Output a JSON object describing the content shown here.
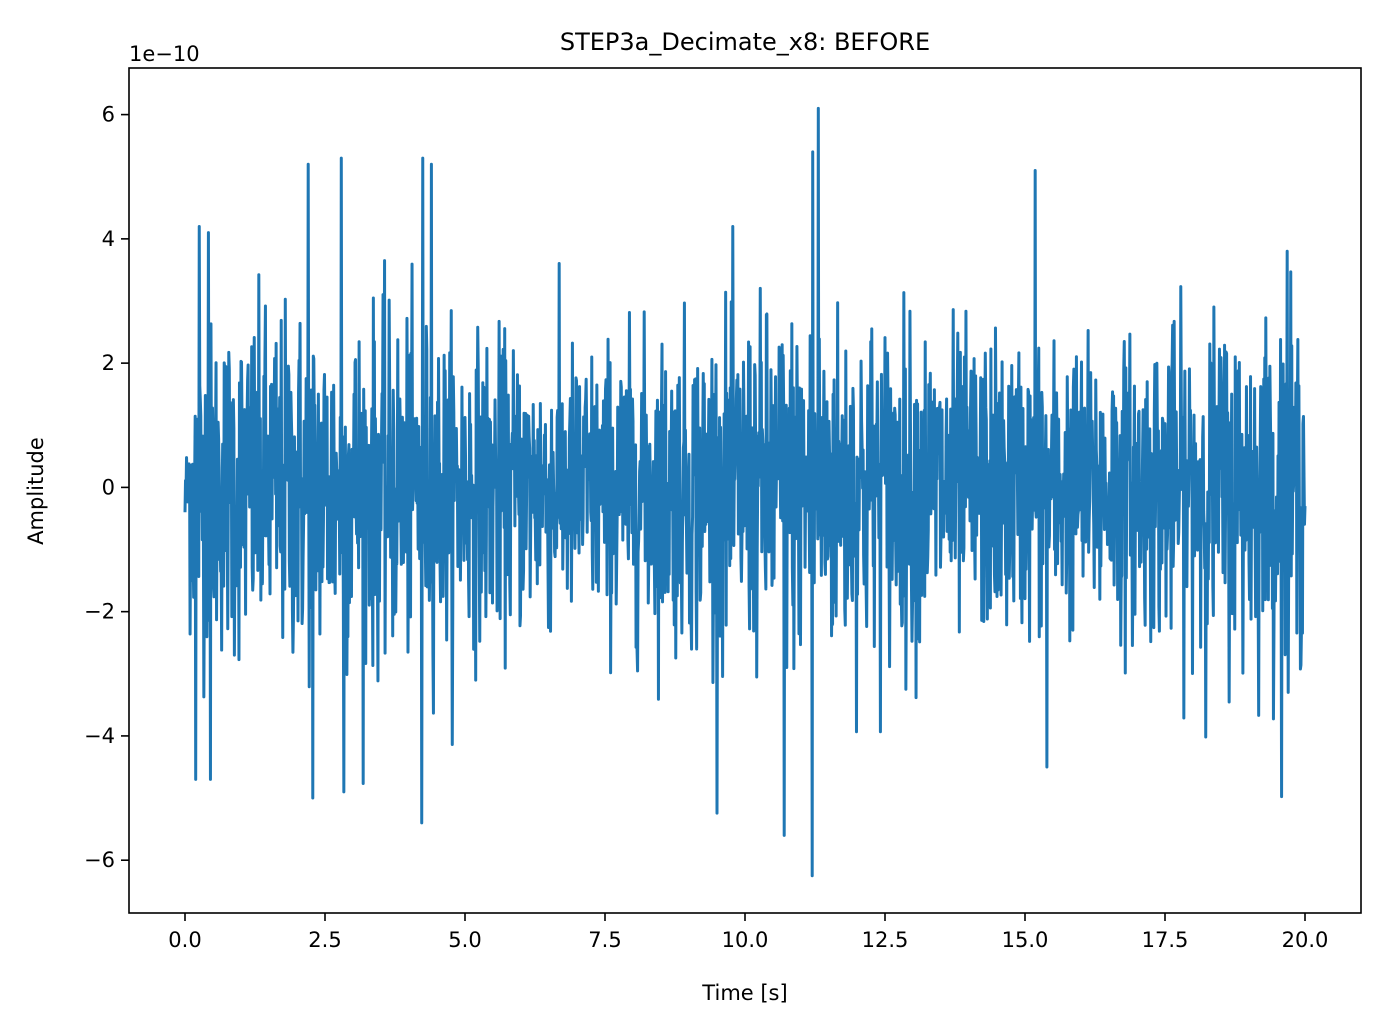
{
  "chart_data": {
    "type": "line",
    "title": "STEP3a_Decimate_x8: BEFORE",
    "xlabel": "Time [s]",
    "ylabel": "Amplitude",
    "y_scale_label": "1e−10",
    "xlim": [
      -1.0,
      21.0
    ],
    "ylim": [
      -6.85,
      6.75
    ],
    "x_ticks": [
      0.0,
      2.5,
      5.0,
      7.5,
      10.0,
      12.5,
      15.0,
      17.5,
      20.0
    ],
    "x_tick_labels": [
      "0.0",
      "2.5",
      "5.0",
      "7.5",
      "10.0",
      "12.5",
      "15.0",
      "17.5",
      "20.0"
    ],
    "y_ticks": [
      -6,
      -4,
      -2,
      0,
      2,
      4,
      6
    ],
    "y_tick_labels": [
      "−6",
      "−4",
      "−2",
      "0",
      "2",
      "4",
      "6"
    ],
    "grid": false,
    "legend": "none",
    "series": [
      {
        "color": "#1f77b4",
        "x_start": 0.0,
        "x_end": 20.0,
        "peaks": [
          {
            "x": 0.25,
            "y": 4.2
          },
          {
            "x": 0.2,
            "y": -4.7
          },
          {
            "x": 0.4,
            "y": 4.1
          },
          {
            "x": 0.45,
            "y": -4.7
          },
          {
            "x": 2.2,
            "y": 5.2
          },
          {
            "x": 2.3,
            "y": -5.0
          },
          {
            "x": 2.8,
            "y": 5.3
          },
          {
            "x": 2.85,
            "y": -4.9
          },
          {
            "x": 4.25,
            "y": 5.3
          },
          {
            "x": 4.22,
            "y": -5.4
          },
          {
            "x": 4.4,
            "y": 5.2
          },
          {
            "x": 10.7,
            "y": -5.6
          },
          {
            "x": 11.2,
            "y": -6.25
          },
          {
            "x": 11.3,
            "y": 6.1
          },
          {
            "x": 11.2,
            "y": 5.4
          },
          {
            "x": 15.2,
            "y": 5.1
          },
          {
            "x": 15.4,
            "y": -4.5
          },
          {
            "x": 19.7,
            "y": 3.8
          },
          {
            "x": 19.7,
            "y": -3.3
          }
        ],
        "amplitude_range": [
          -6.25,
          6.1
        ]
      }
    ]
  }
}
